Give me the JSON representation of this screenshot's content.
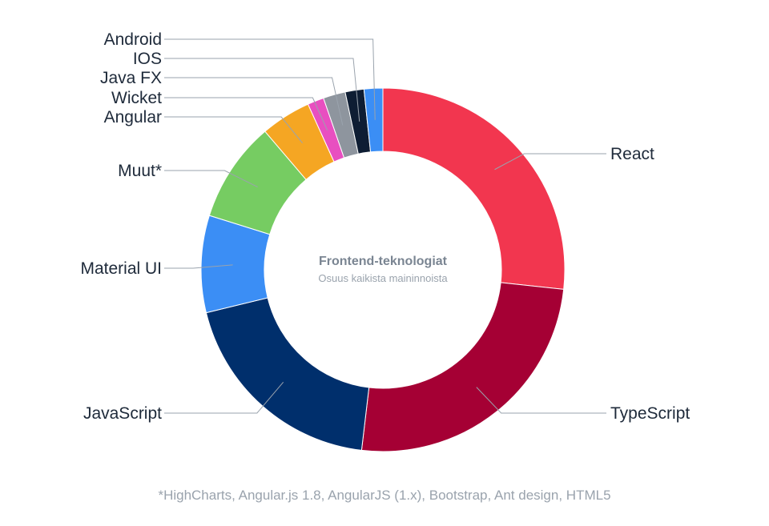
{
  "chart_data": {
    "type": "pie",
    "title": "Frontend-teknologiat",
    "subtitle": "Osuus kaikista maininnoista",
    "slices": [
      {
        "label": "React",
        "value": 25.7,
        "color": "#f2364f"
      },
      {
        "label": "TypeScript",
        "value": 24.2,
        "color": "#a50034"
      },
      {
        "label": "JavaScript",
        "value": 18.6,
        "color": "#002f6c"
      },
      {
        "label": "Material UI",
        "value": 8.3,
        "color": "#3b8ef5"
      },
      {
        "label": "Muut*",
        "value": 8.6,
        "color": "#76cc62"
      },
      {
        "label": "Angular",
        "value": 4.3,
        "color": "#f5a623"
      },
      {
        "label": "Wicket",
        "value": 1.4,
        "color": "#e84fc0"
      },
      {
        "label": "Java FX",
        "value": 1.9,
        "color": "#8e959e"
      },
      {
        "label": "IOS",
        "value": 1.6,
        "color": "#0e1d33"
      },
      {
        "label": "Android",
        "value": 1.6,
        "color": "#3b8ef5"
      }
    ]
  },
  "footnote": "*HighCharts, Angular.js 1.8, AngularJS (1.x), Bootstrap, Ant design, HTML5"
}
